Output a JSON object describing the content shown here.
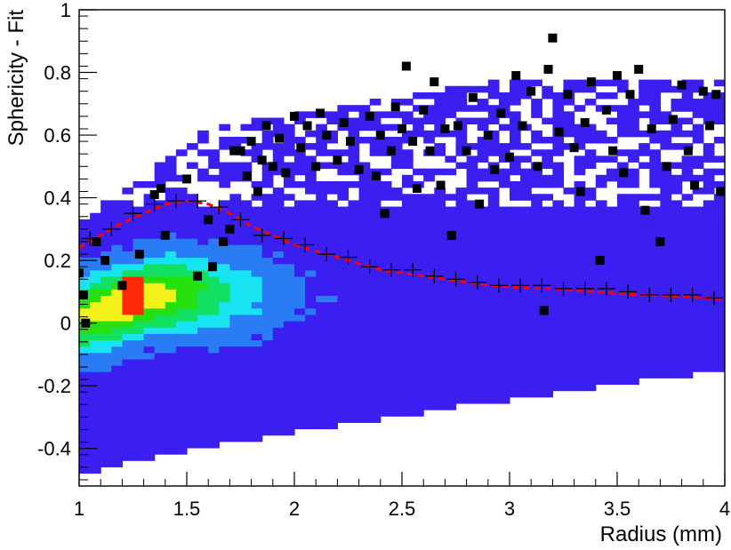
{
  "chart_data": {
    "type": "heatmap",
    "title": "",
    "xlabel": "Radius (mm)",
    "ylabel": "Sphericity - Fit",
    "xlim": [
      1,
      4
    ],
    "ylim": [
      -0.52,
      1.0
    ],
    "xticks": [
      1,
      1.5,
      2,
      2.5,
      3,
      3.5,
      4
    ],
    "xtick_labels": [
      "1",
      "1.5",
      "2",
      "2.5",
      "3",
      "3.5",
      "4"
    ],
    "yticks": [
      -0.4,
      -0.2,
      0,
      0.2,
      0.4,
      0.6,
      0.8,
      1
    ],
    "ytick_labels": [
      "-0.4",
      "-0.2",
      "0",
      "0.2",
      "0.4",
      "0.6",
      "0.8",
      "1"
    ],
    "grid": false,
    "colormap": [
      "#3a1ff0",
      "#2a7cf5",
      "#18e3f0",
      "#12e060",
      "#26e00d",
      "#f2f21a",
      "#ff2a0a"
    ],
    "colors": {
      "fit_line": "#ff0000",
      "marker": "#000000"
    },
    "series": [
      {
        "style": "black-square-markers",
        "points": [
          [
            1.0,
            0.16
          ],
          [
            1.02,
            0.09
          ],
          [
            1.03,
            0.0
          ],
          [
            1.08,
            0.26
          ],
          [
            1.12,
            0.2
          ],
          [
            1.2,
            0.12
          ],
          [
            1.28,
            0.22
          ],
          [
            1.35,
            0.41
          ],
          [
            1.38,
            0.43
          ],
          [
            1.4,
            0.28
          ],
          [
            1.5,
            0.46
          ],
          [
            1.55,
            0.15
          ],
          [
            1.6,
            0.33
          ],
          [
            1.62,
            0.18
          ],
          [
            1.67,
            0.26
          ],
          [
            1.7,
            0.3
          ],
          [
            1.72,
            0.55
          ],
          [
            1.75,
            0.55
          ],
          [
            1.78,
            0.47
          ],
          [
            1.8,
            0.58
          ],
          [
            1.83,
            0.42
          ],
          [
            1.85,
            0.52
          ],
          [
            1.87,
            0.63
          ],
          [
            1.9,
            0.5
          ],
          [
            1.93,
            0.59
          ],
          [
            1.96,
            0.48
          ],
          [
            2.0,
            0.66
          ],
          [
            2.03,
            0.56
          ],
          [
            2.06,
            0.63
          ],
          [
            2.1,
            0.5
          ],
          [
            2.12,
            0.67
          ],
          [
            2.15,
            0.6
          ],
          [
            2.2,
            0.52
          ],
          [
            2.23,
            0.64
          ],
          [
            2.26,
            0.58
          ],
          [
            2.3,
            0.49
          ],
          [
            2.35,
            0.66
          ],
          [
            2.38,
            0.47
          ],
          [
            2.4,
            0.6
          ],
          [
            2.42,
            0.35
          ],
          [
            2.45,
            0.55
          ],
          [
            2.47,
            0.69
          ],
          [
            2.5,
            0.62
          ],
          [
            2.52,
            0.82
          ],
          [
            2.55,
            0.58
          ],
          [
            2.57,
            0.43
          ],
          [
            2.6,
            0.68
          ],
          [
            2.63,
            0.55
          ],
          [
            2.65,
            0.77
          ],
          [
            2.68,
            0.44
          ],
          [
            2.7,
            0.62
          ],
          [
            2.73,
            0.28
          ],
          [
            2.76,
            0.63
          ],
          [
            2.8,
            0.55
          ],
          [
            2.83,
            0.72
          ],
          [
            2.86,
            0.38
          ],
          [
            2.9,
            0.6
          ],
          [
            2.93,
            0.49
          ],
          [
            2.96,
            0.67
          ],
          [
            3.0,
            0.53
          ],
          [
            3.03,
            0.79
          ],
          [
            3.06,
            0.63
          ],
          [
            3.1,
            0.74
          ],
          [
            3.13,
            0.5
          ],
          [
            3.16,
            0.04
          ],
          [
            3.18,
            0.81
          ],
          [
            3.2,
            0.91
          ],
          [
            3.23,
            0.61
          ],
          [
            3.27,
            0.73
          ],
          [
            3.3,
            0.56
          ],
          [
            3.33,
            0.42
          ],
          [
            3.35,
            0.64
          ],
          [
            3.38,
            0.77
          ],
          [
            3.42,
            0.2
          ],
          [
            3.45,
            0.68
          ],
          [
            3.48,
            0.55
          ],
          [
            3.5,
            0.79
          ],
          [
            3.53,
            0.48
          ],
          [
            3.56,
            0.73
          ],
          [
            3.6,
            0.81
          ],
          [
            3.63,
            0.36
          ],
          [
            3.66,
            0.62
          ],
          [
            3.7,
            0.26
          ],
          [
            3.73,
            0.5
          ],
          [
            3.76,
            0.65
          ],
          [
            3.8,
            0.76
          ],
          [
            3.83,
            0.55
          ],
          [
            3.86,
            0.44
          ],
          [
            3.9,
            0.74
          ],
          [
            3.93,
            0.63
          ],
          [
            3.96,
            0.73
          ],
          [
            3.98,
            0.42
          ]
        ]
      },
      {
        "style": "black-cross-profile",
        "points": [
          [
            1.05,
            0.27
          ],
          [
            1.15,
            0.3
          ],
          [
            1.25,
            0.35
          ],
          [
            1.35,
            0.38
          ],
          [
            1.45,
            0.39
          ],
          [
            1.55,
            0.39
          ],
          [
            1.65,
            0.37
          ],
          [
            1.75,
            0.33
          ],
          [
            1.85,
            0.28
          ],
          [
            1.95,
            0.27
          ],
          [
            2.05,
            0.25
          ],
          [
            2.15,
            0.22
          ],
          [
            2.25,
            0.21
          ],
          [
            2.35,
            0.18
          ],
          [
            2.45,
            0.17
          ],
          [
            2.55,
            0.17
          ],
          [
            2.65,
            0.15
          ],
          [
            2.75,
            0.14
          ],
          [
            2.85,
            0.13
          ],
          [
            2.95,
            0.12
          ],
          [
            3.05,
            0.12
          ],
          [
            3.15,
            0.12
          ],
          [
            3.25,
            0.11
          ],
          [
            3.35,
            0.11
          ],
          [
            3.45,
            0.11
          ],
          [
            3.55,
            0.1
          ],
          [
            3.65,
            0.09
          ],
          [
            3.75,
            0.09
          ],
          [
            3.85,
            0.09
          ],
          [
            3.95,
            0.08
          ]
        ]
      },
      {
        "style": "red-dashed-fit",
        "points": [
          [
            1.0,
            0.24
          ],
          [
            1.1,
            0.28
          ],
          [
            1.2,
            0.32
          ],
          [
            1.3,
            0.35
          ],
          [
            1.4,
            0.38
          ],
          [
            1.5,
            0.39
          ],
          [
            1.6,
            0.38
          ],
          [
            1.7,
            0.35
          ],
          [
            1.8,
            0.31
          ],
          [
            1.9,
            0.28
          ],
          [
            2.0,
            0.25
          ],
          [
            2.1,
            0.23
          ],
          [
            2.2,
            0.21
          ],
          [
            2.3,
            0.19
          ],
          [
            2.4,
            0.17
          ],
          [
            2.5,
            0.16
          ],
          [
            2.6,
            0.15
          ],
          [
            2.7,
            0.14
          ],
          [
            2.8,
            0.13
          ],
          [
            2.9,
            0.12
          ],
          [
            3.0,
            0.115
          ],
          [
            3.2,
            0.11
          ],
          [
            3.4,
            0.1
          ],
          [
            3.6,
            0.09
          ],
          [
            3.8,
            0.085
          ],
          [
            4.0,
            0.075
          ]
        ]
      }
    ]
  }
}
